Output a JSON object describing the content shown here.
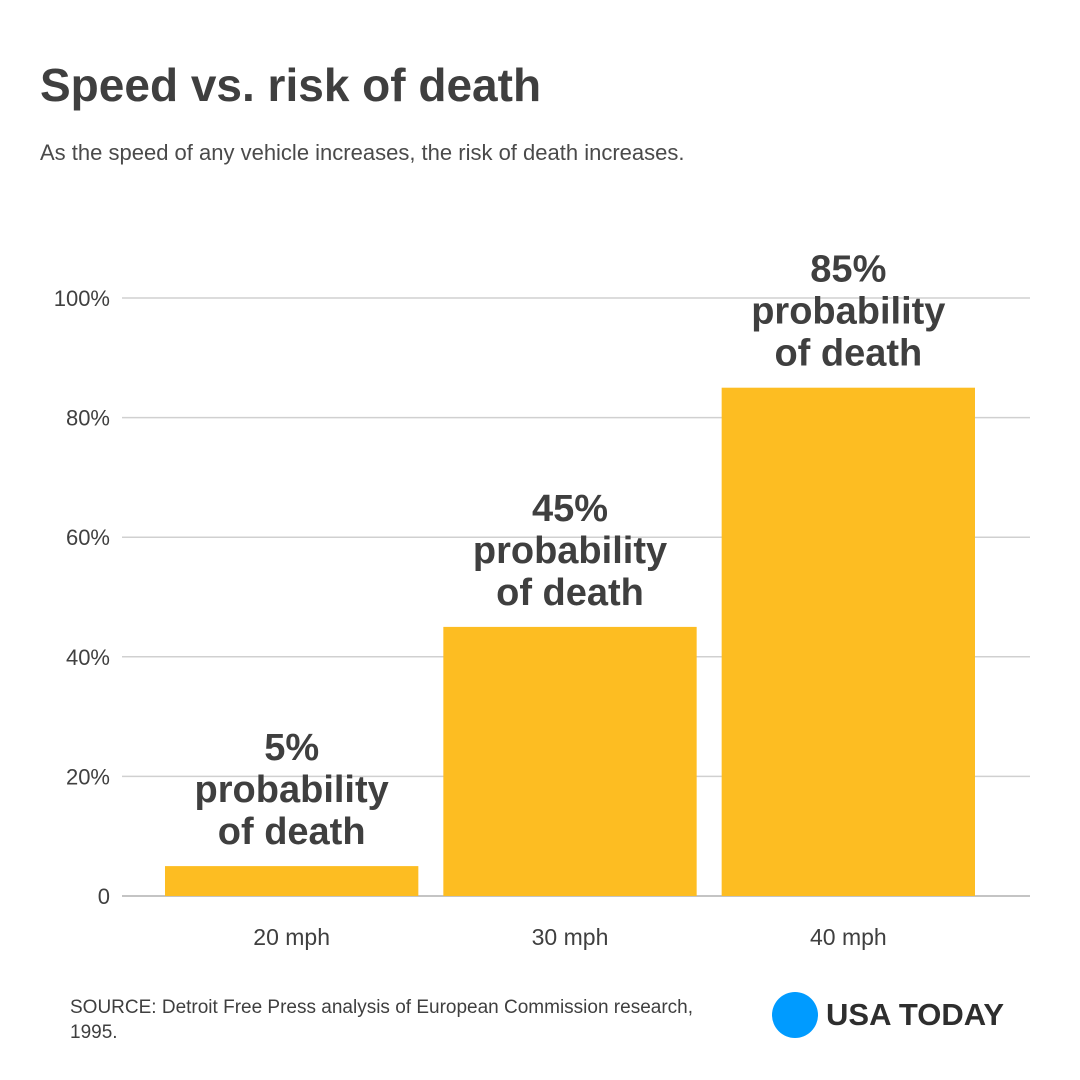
{
  "chart_data": {
    "type": "bar",
    "title": "Speed vs. risk of death",
    "subtitle": "As the speed of any vehicle increases, the risk of death increases.",
    "categories": [
      "20 mph",
      "30 mph",
      "40 mph"
    ],
    "values": [
      5,
      45,
      85
    ],
    "data_labels": [
      [
        "5%",
        "probability",
        "of death"
      ],
      [
        "45%",
        "probability",
        "of death"
      ],
      [
        "85%",
        "probability",
        "of death"
      ]
    ],
    "yticks": [
      0,
      20,
      40,
      60,
      80,
      100
    ],
    "ytick_labels": [
      "0",
      "20%",
      "40%",
      "60%",
      "80%",
      "100%"
    ],
    "ylim": [
      0,
      100
    ],
    "xlabel": "",
    "ylabel": "",
    "grid": true,
    "legend": "none",
    "colors": {
      "bar": "#fdbd22",
      "grid": "#d0d0d0",
      "text": "#3f3f3f"
    }
  },
  "footer": {
    "source": "SOURCE: Detroit Free Press analysis of European Commission research, 1995.",
    "brand": "USA TODAY",
    "brand_color": "#009bff"
  }
}
